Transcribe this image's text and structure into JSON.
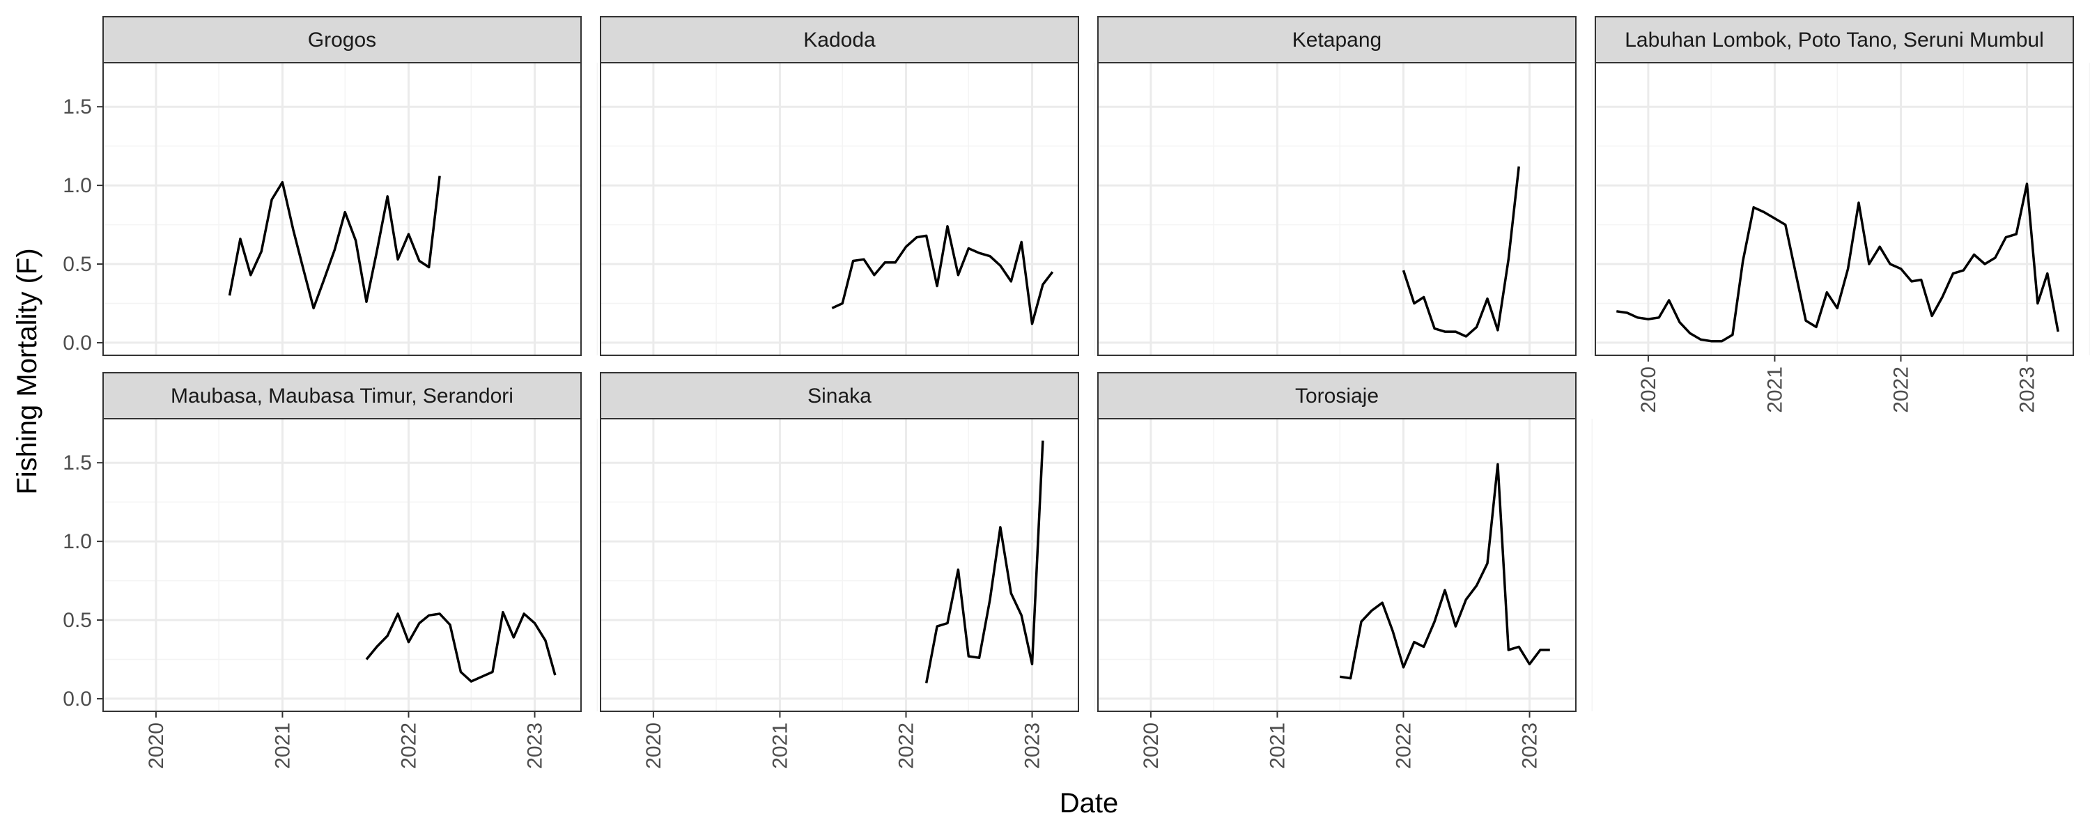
{
  "chart_data": {
    "type": "line",
    "layout": "facet_wrap",
    "xlabel": "Date",
    "ylabel": "Fishing Mortality (F)",
    "x_ticks": [
      "2020",
      "2021",
      "2022",
      "2023"
    ],
    "y_ticks": [
      "0.0",
      "0.5",
      "1.0",
      "1.5"
    ],
    "xlim": [
      "2019-08-01",
      "2023-05-15"
    ],
    "ylim": [
      -0.08,
      1.78
    ],
    "colors": {
      "line": "#000000",
      "strip_fill": "#d9d9d9",
      "panel_border": "#333333",
      "grid_major": "#ebebeb",
      "grid_minor": "#f4f4f4",
      "background": "#ffffff"
    },
    "panels": [
      {
        "name": "Grogos",
        "x": [
          "2020-08-01",
          "2020-09-01",
          "2020-10-01",
          "2020-11-01",
          "2020-12-01",
          "2021-01-01",
          "2021-02-01",
          "2021-03-01",
          "2021-04-01",
          "2021-05-01",
          "2021-06-01",
          "2021-07-01",
          "2021-08-01",
          "2021-09-01",
          "2021-10-01",
          "2021-11-01",
          "2021-12-01",
          "2022-01-01",
          "2022-02-01",
          "2022-03-01",
          "2022-04-01"
        ],
        "y": [
          0.3,
          0.66,
          0.43,
          0.58,
          0.91,
          1.02,
          0.72,
          0.48,
          0.22,
          0.4,
          0.59,
          0.83,
          0.65,
          0.26,
          0.58,
          0.93,
          0.53,
          0.69,
          0.52,
          0.48,
          1.06
        ]
      },
      {
        "name": "Kadoda",
        "x": [
          "2021-06-01",
          "2021-07-01",
          "2021-08-01",
          "2021-09-01",
          "2021-10-01",
          "2021-11-01",
          "2021-12-01",
          "2022-01-01",
          "2022-02-01",
          "2022-03-01",
          "2022-04-01",
          "2022-05-01",
          "2022-06-01",
          "2022-07-01",
          "2022-08-01",
          "2022-09-01",
          "2022-10-01",
          "2022-11-01",
          "2022-12-01",
          "2023-01-01",
          "2023-02-01",
          "2023-03-01"
        ],
        "y": [
          0.22,
          0.25,
          0.52,
          0.53,
          0.43,
          0.51,
          0.51,
          0.61,
          0.67,
          0.68,
          0.36,
          0.74,
          0.43,
          0.6,
          0.57,
          0.55,
          0.49,
          0.39,
          0.64,
          0.12,
          0.37,
          0.45
        ]
      },
      {
        "name": "Ketapang",
        "x": [
          "2022-01-01",
          "2022-02-01",
          "2022-03-01",
          "2022-04-01",
          "2022-05-01",
          "2022-06-01",
          "2022-07-01",
          "2022-08-01",
          "2022-09-01",
          "2022-10-01",
          "2022-11-01",
          "2022-12-01"
        ],
        "y": [
          0.46,
          0.25,
          0.29,
          0.09,
          0.07,
          0.07,
          0.04,
          0.1,
          0.28,
          0.08,
          0.53,
          1.12
        ]
      },
      {
        "name": "Labuhan Lombok, Poto Tano, Seruni Mumbul",
        "x": [
          "2019-10-01",
          "2019-11-01",
          "2019-12-01",
          "2020-01-01",
          "2020-02-01",
          "2020-03-01",
          "2020-04-01",
          "2020-05-01",
          "2020-06-01",
          "2020-07-01",
          "2020-08-01",
          "2020-09-01",
          "2020-10-01",
          "2020-11-01",
          "2020-12-01",
          "2021-01-01",
          "2021-02-01",
          "2021-03-01",
          "2021-04-01",
          "2021-05-01",
          "2021-06-01",
          "2021-07-01",
          "2021-08-01",
          "2021-09-01",
          "2021-10-01",
          "2021-11-01",
          "2021-12-01",
          "2022-01-01",
          "2022-02-01",
          "2022-03-01",
          "2022-04-01",
          "2022-05-01",
          "2022-06-01",
          "2022-07-01",
          "2022-08-01",
          "2022-09-01",
          "2022-10-01",
          "2022-11-01",
          "2022-12-01",
          "2023-01-01",
          "2023-02-01",
          "2023-03-01",
          "2023-04-01"
        ],
        "y": [
          0.2,
          0.19,
          0.16,
          0.15,
          0.16,
          0.27,
          0.13,
          0.06,
          0.02,
          0.01,
          0.01,
          0.05,
          0.52,
          0.86,
          0.83,
          0.79,
          0.75,
          0.46,
          0.14,
          0.1,
          0.32,
          0.22,
          0.47,
          0.89,
          0.5,
          0.61,
          0.5,
          0.47,
          0.39,
          0.4,
          0.17,
          0.29,
          0.44,
          0.46,
          0.56,
          0.5,
          0.54,
          0.67,
          0.69,
          1.01,
          0.25,
          0.44,
          0.07
        ]
      },
      {
        "name": "Maubasa, Maubasa Timur, Serandori",
        "x": [
          "2021-09-01",
          "2021-10-01",
          "2021-11-01",
          "2021-12-01",
          "2022-01-01",
          "2022-02-01",
          "2022-03-01",
          "2022-04-01",
          "2022-05-01",
          "2022-06-01",
          "2022-07-01",
          "2022-08-01",
          "2022-09-01",
          "2022-10-01",
          "2022-11-01",
          "2022-12-01",
          "2023-01-01",
          "2023-02-01",
          "2023-03-01"
        ],
        "y": [
          0.25,
          0.33,
          0.4,
          0.54,
          0.36,
          0.48,
          0.53,
          0.54,
          0.47,
          0.17,
          0.11,
          0.14,
          0.17,
          0.55,
          0.39,
          0.54,
          0.48,
          0.37,
          0.15
        ]
      },
      {
        "name": "Sinaka",
        "x": [
          "2022-03-01",
          "2022-04-01",
          "2022-05-01",
          "2022-06-01",
          "2022-07-01",
          "2022-08-01",
          "2022-09-01",
          "2022-10-01",
          "2022-11-01",
          "2022-12-01",
          "2023-01-01",
          "2023-02-01"
        ],
        "y": [
          0.1,
          0.46,
          0.48,
          0.82,
          0.27,
          0.26,
          0.63,
          1.09,
          0.67,
          0.53,
          0.22,
          1.64
        ]
      },
      {
        "name": "Torosiaje",
        "x": [
          "2021-07-01",
          "2021-08-01",
          "2021-09-01",
          "2021-10-01",
          "2021-11-01",
          "2021-12-01",
          "2022-01-01",
          "2022-02-01",
          "2022-03-01",
          "2022-04-01",
          "2022-05-01",
          "2022-06-01",
          "2022-07-01",
          "2022-08-01",
          "2022-09-01",
          "2022-10-01",
          "2022-11-01",
          "2022-12-01",
          "2023-01-01",
          "2023-02-01",
          "2023-03-01"
        ],
        "y": [
          0.14,
          0.13,
          0.49,
          0.56,
          0.61,
          0.43,
          0.2,
          0.36,
          0.33,
          0.49,
          0.69,
          0.46,
          0.63,
          0.72,
          0.86,
          1.49,
          0.31,
          0.33,
          0.22,
          0.31,
          0.31
        ]
      }
    ]
  }
}
